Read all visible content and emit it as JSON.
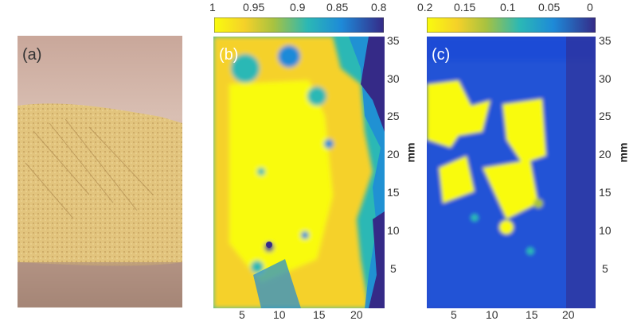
{
  "panels": {
    "a": {
      "label": "(a)"
    },
    "b": {
      "label": "(b)"
    },
    "c": {
      "label": "(c)"
    }
  },
  "colorbar_b": {
    "ticks": [
      "1",
      "0.95",
      "0.9",
      "0.85",
      "0.8"
    ]
  },
  "colorbar_c": {
    "ticks": [
      "0.2",
      "0.15",
      "0.1",
      "0.05",
      "0"
    ]
  },
  "y_axis": {
    "unit": "mm",
    "ticks": [
      "35",
      "30",
      "25",
      "20",
      "15",
      "10",
      "5"
    ]
  },
  "x_axis": {
    "ticks": [
      "5",
      "10",
      "15",
      "20"
    ]
  },
  "colors": {
    "parula_high": "#f9fb0e",
    "parula_mid": "#2bb8b5",
    "parula_low": "#352a87"
  }
}
